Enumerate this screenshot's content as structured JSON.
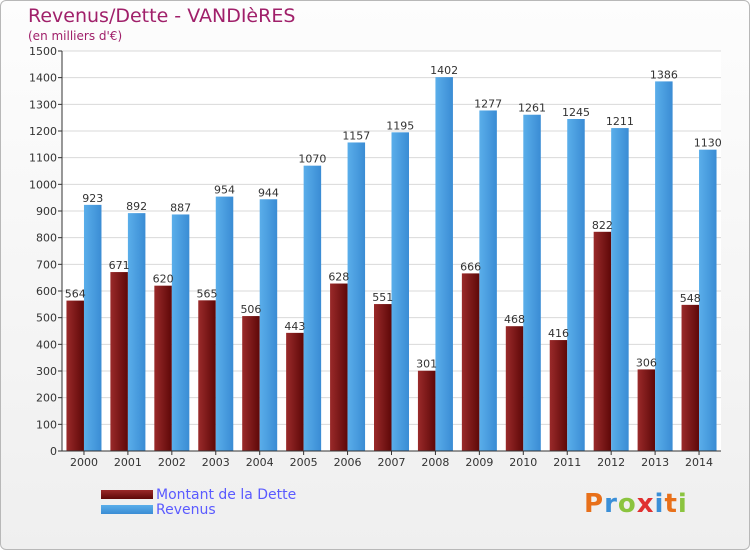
{
  "title": "Revenus/Dette - VANDIèRES",
  "subtitle": "(en milliers d'€)",
  "colors": {
    "dette": "#7a1414",
    "revenus": "#4a9de0",
    "title": "#a0206a",
    "legend_text": "#5a5aff"
  },
  "legend": {
    "dette_label": "Montant de la Dette",
    "revenus_label": "Revenus"
  },
  "logo": {
    "letters": [
      "P",
      "r",
      "o",
      "x",
      "i",
      "t",
      "i"
    ]
  },
  "chart_data": {
    "type": "bar",
    "categories": [
      "2000",
      "2001",
      "2002",
      "2003",
      "2004",
      "2005",
      "2006",
      "2007",
      "2008",
      "2009",
      "2010",
      "2011",
      "2012",
      "2013",
      "2014"
    ],
    "series": [
      {
        "name": "Montant de la Dette",
        "values": [
          564,
          671,
          620,
          565,
          506,
          443,
          628,
          551,
          301,
          666,
          468,
          416,
          822,
          306,
          548
        ]
      },
      {
        "name": "Revenus",
        "values": [
          923,
          892,
          887,
          954,
          944,
          1070,
          1157,
          1195,
          1402,
          1277,
          1261,
          1245,
          1211,
          1386,
          1130
        ]
      }
    ],
    "ylim": [
      0,
      1500
    ],
    "yticks": [
      "0",
      "100",
      "200",
      "300",
      "400",
      "500",
      "600",
      "700",
      "800",
      "900",
      "1000",
      "1100",
      "1200",
      "1300",
      "1400",
      "1500"
    ],
    "grid": true
  }
}
